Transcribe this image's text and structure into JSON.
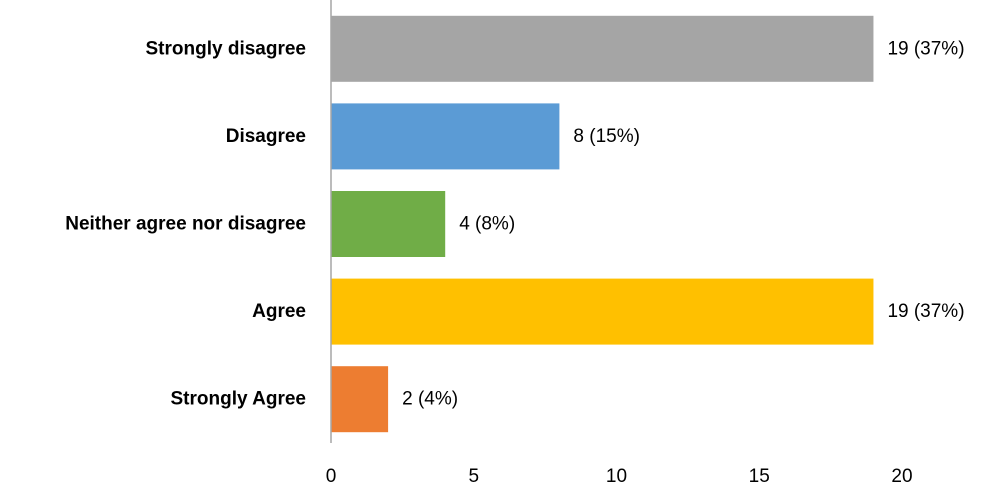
{
  "chart_data": {
    "type": "bar",
    "orientation": "horizontal",
    "title": "",
    "xlabel": "",
    "ylabel": "",
    "categories": [
      "Strongly disagree",
      "Disagree",
      "Neither agree nor disagree",
      "Agree",
      "Strongly Agree"
    ],
    "values": [
      19,
      8,
      4,
      19,
      2
    ],
    "data_labels": [
      "19 (37%)",
      "8 (15%)",
      "4 (8%)",
      "19 (37%)",
      "2 (4%)"
    ],
    "colors": [
      "#a5a5a5",
      "#5b9bd5",
      "#70ad47",
      "#ffc000",
      "#ed7d31"
    ],
    "xlim": [
      0,
      20
    ],
    "xticks": [
      0,
      5,
      10,
      15,
      20
    ],
    "grid": false,
    "legend": "none"
  }
}
